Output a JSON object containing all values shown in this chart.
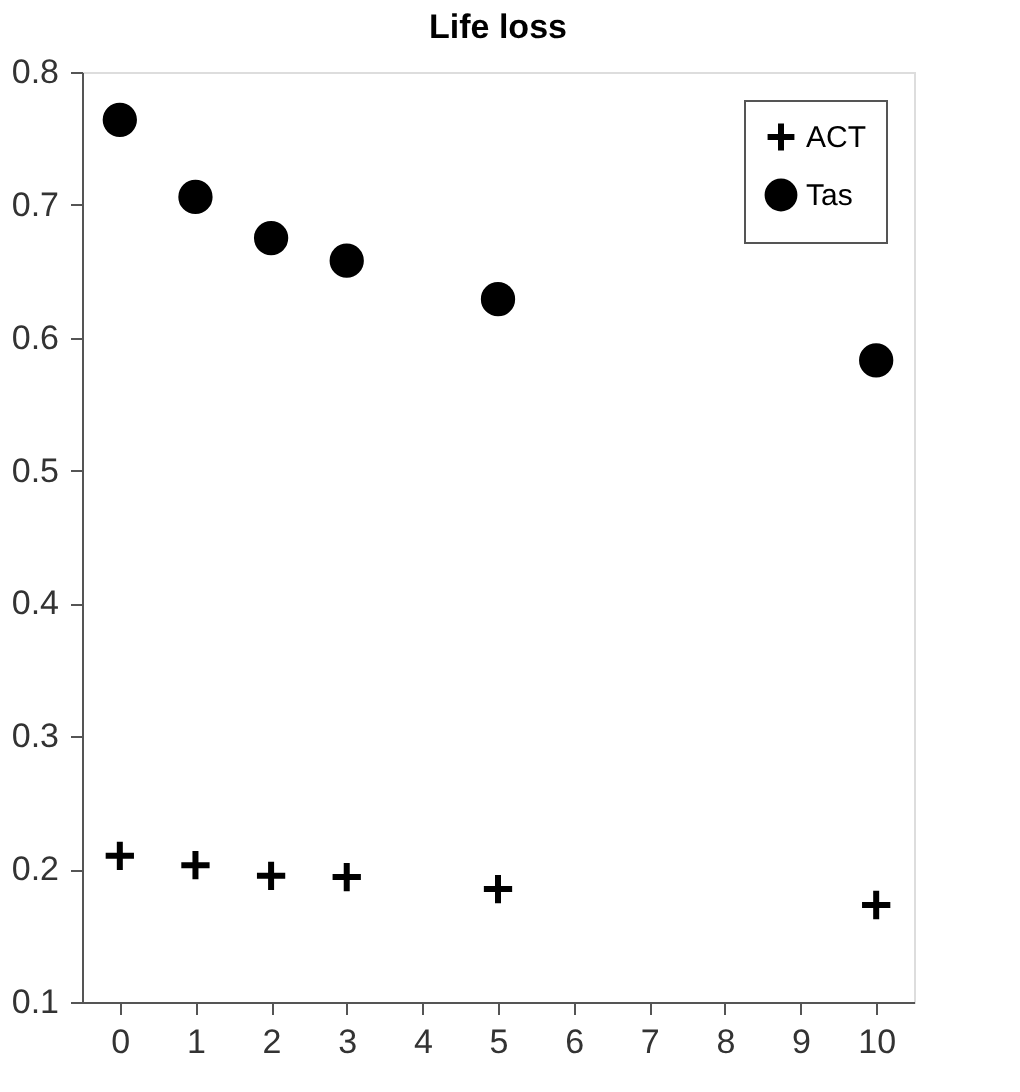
{
  "chart_data": {
    "type": "scatter",
    "title": "Life loss",
    "x": [
      0,
      1,
      2,
      3,
      5,
      10
    ],
    "series": [
      {
        "name": "ACT",
        "color": "#000000",
        "marker": "cross",
        "values": [
          0.21,
          0.203,
          0.195,
          0.194,
          0.185,
          0.173
        ]
      },
      {
        "name": "Tas",
        "color": "#000000",
        "marker": "circle",
        "values": [
          0.764,
          0.706,
          0.675,
          0.658,
          0.629,
          0.583
        ]
      }
    ],
    "xlim": [
      -0.5,
      10.5
    ],
    "xticks": [
      0,
      1,
      2,
      3,
      4,
      5,
      6,
      7,
      8,
      9,
      10
    ],
    "ylim": [
      0.1,
      0.8
    ],
    "yticks": [
      0.1,
      0.2,
      0.3,
      0.4,
      0.5,
      0.6,
      0.7,
      0.8
    ],
    "grid": false,
    "legend": "top right"
  }
}
